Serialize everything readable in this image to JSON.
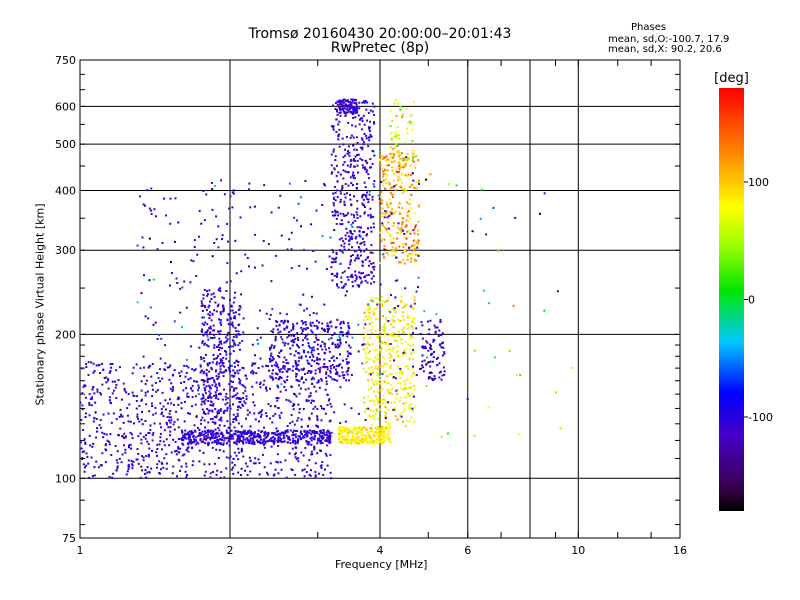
{
  "header": {
    "title": "Tromsø 20160430 20:00:00–20:01:43",
    "subtitle": "RwPretec (8p)"
  },
  "phase_stats": {
    "heading": "Phases",
    "line_o": "mean, sd,O:-100.7, 17.9",
    "line_x": "mean, sd,X:  90.2, 20.6"
  },
  "colorbar": {
    "label": "[deg]",
    "tick_labels": [
      "100",
      "0",
      "-100"
    ],
    "tick_values": [
      100,
      0,
      -100
    ],
    "range": [
      -180,
      180
    ]
  },
  "chart_data": {
    "type": "scatter",
    "title": "Tromsø 20160430 20:00:00–20:01:43",
    "subtitle": "RwPretec (8p)",
    "xlabel": "Frequency [MHz]",
    "ylabel": "Stationary phase Virtual Height [km]",
    "xscale": "log",
    "yscale": "log",
    "xlim": [
      1,
      16
    ],
    "ylim": [
      75,
      750
    ],
    "x_ticks": [
      1,
      2,
      4,
      6,
      10,
      16
    ],
    "x_tick_labels": [
      "1",
      "2",
      "4",
      "6",
      "10",
      "16"
    ],
    "y_ticks": [
      75,
      100,
      200,
      300,
      400,
      500,
      600,
      750
    ],
    "y_tick_labels": [
      "75",
      "100",
      "200",
      "300",
      "400",
      "500",
      "600",
      "750"
    ],
    "x_gridlines": [
      2,
      4,
      6,
      8,
      10
    ],
    "y_gridlines": [
      100,
      200,
      300,
      400,
      500,
      600
    ],
    "grid": true,
    "color_encoding": "phase [deg]",
    "series": [
      {
        "name": "O",
        "phase_mean": -100.7,
        "phase_sd": 17.9
      },
      {
        "name": "X",
        "phase_mean": 90.2,
        "phase_sd": 20.6
      }
    ],
    "echo_clusters": [
      {
        "x": [
          1.0,
          3.2
        ],
        "y": [
          100,
          175
        ],
        "phase_mean": -105,
        "phase_sd": 12,
        "count": 900
      },
      {
        "x": [
          1.6,
          3.2
        ],
        "y": [
          118,
          126
        ],
        "phase_mean": -105,
        "phase_sd": 10,
        "count": 420
      },
      {
        "x": [
          1.75,
          2.1
        ],
        "y": [
          130,
          250
        ],
        "phase_mean": -105,
        "phase_sd": 12,
        "count": 320
      },
      {
        "x": [
          2.4,
          3.5
        ],
        "y": [
          160,
          215
        ],
        "phase_mean": -105,
        "phase_sd": 15,
        "count": 320
      },
      {
        "x": [
          3.2,
          3.9
        ],
        "y": [
          250,
          620
        ],
        "phase_mean": -110,
        "phase_sd": 15,
        "count": 420
      },
      {
        "x": [
          3.3,
          3.6
        ],
        "y": [
          580,
          620
        ],
        "phase_mean": -105,
        "phase_sd": 12,
        "count": 90
      },
      {
        "x": [
          3.3,
          4.2
        ],
        "y": [
          118,
          128
        ],
        "phase_mean": 85,
        "phase_sd": 10,
        "count": 260
      },
      {
        "x": [
          3.7,
          4.7
        ],
        "y": [
          128,
          240
        ],
        "phase_mean": 85,
        "phase_sd": 15,
        "count": 380
      },
      {
        "x": [
          4.0,
          4.8
        ],
        "y": [
          280,
          480
        ],
        "phase_mean": 110,
        "phase_sd": 25,
        "count": 260
      },
      {
        "x": [
          4.2,
          4.7
        ],
        "y": [
          450,
          620
        ],
        "phase_mean": 70,
        "phase_sd": 30,
        "count": 60
      },
      {
        "x": [
          4.8,
          5.4
        ],
        "y": [
          160,
          215
        ],
        "phase_mean": -110,
        "phase_sd": 15,
        "count": 90
      },
      {
        "x": [
          1.3,
          4.8
        ],
        "y": [
          130,
          420
        ],
        "phase_mean": -100,
        "phase_sd": 30,
        "count": 380
      },
      {
        "x": [
          4.5,
          10.0
        ],
        "y": [
          120,
          480
        ],
        "phase_mean": 0,
        "phase_sd": 110,
        "count": 40
      }
    ]
  }
}
